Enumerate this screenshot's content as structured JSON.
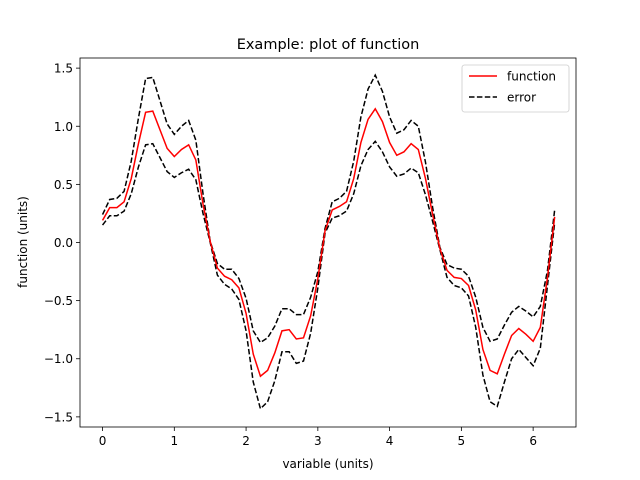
{
  "chart_data": {
    "type": "line",
    "title": "Example: plot of function",
    "xlabel": "variable (units)",
    "ylabel": "function (units)",
    "xlim": [
      -0.3142,
      6.5973
    ],
    "ylim": [
      -1.5871,
      1.5871
    ],
    "xticks": [
      0,
      1,
      2,
      3,
      4,
      5,
      6
    ],
    "xtick_labels": [
      "0",
      "1",
      "2",
      "3",
      "4",
      "5",
      "6"
    ],
    "yticks": [
      -1.5,
      -1.0,
      -0.5,
      0.0,
      0.5,
      1.0,
      1.5
    ],
    "ytick_labels": [
      "−1.5",
      "−1.0",
      "−0.5",
      "0.0",
      "0.5",
      "1.0",
      "1.5"
    ],
    "grid": false,
    "legend_position": "top-right",
    "x": [
      0.0,
      0.1,
      0.2,
      0.3,
      0.4,
      0.5,
      0.6,
      0.7,
      0.8,
      0.9,
      1.0,
      1.1,
      1.2,
      1.3,
      1.4,
      1.5,
      1.6,
      1.7,
      1.8,
      1.9,
      2.0,
      2.1,
      2.2,
      2.3,
      2.4,
      2.5,
      2.6,
      2.7,
      2.8,
      2.9,
      3.0,
      3.1,
      3.2,
      3.3,
      3.4,
      3.5,
      3.6,
      3.7,
      3.8,
      3.9,
      4.0,
      4.1,
      4.2,
      4.3,
      4.4,
      4.5,
      4.6,
      4.7,
      4.8,
      4.9,
      5.0,
      5.1,
      5.2,
      5.3,
      5.4,
      5.5,
      5.6,
      5.7,
      5.8,
      5.9,
      6.0,
      6.1,
      6.2,
      6.3
    ],
    "series": [
      {
        "name": "function",
        "color": "#ff0000",
        "style": "solid",
        "values": [
          0.19,
          0.3,
          0.3,
          0.35,
          0.55,
          0.85,
          1.12,
          1.13,
          0.97,
          0.81,
          0.74,
          0.8,
          0.84,
          0.71,
          0.33,
          0.01,
          -0.22,
          -0.29,
          -0.32,
          -0.39,
          -0.61,
          -0.96,
          -1.15,
          -1.1,
          -0.95,
          -0.76,
          -0.75,
          -0.83,
          -0.82,
          -0.63,
          -0.31,
          0.1,
          0.28,
          0.31,
          0.35,
          0.55,
          0.86,
          1.06,
          1.15,
          1.04,
          0.86,
          0.75,
          0.78,
          0.85,
          0.8,
          0.55,
          0.24,
          -0.05,
          -0.24,
          -0.3,
          -0.31,
          -0.37,
          -0.58,
          -0.92,
          -1.1,
          -1.13,
          -0.96,
          -0.8,
          -0.74,
          -0.79,
          -0.85,
          -0.73,
          -0.3,
          0.22
        ]
      },
      {
        "name": "error",
        "color": "#000000",
        "style": "dashed",
        "upper": [
          0.24,
          0.37,
          0.38,
          0.44,
          0.7,
          1.07,
          1.41,
          1.42,
          1.22,
          1.02,
          0.93,
          1.0,
          1.05,
          0.88,
          0.42,
          0.01,
          -0.18,
          -0.23,
          -0.23,
          -0.31,
          -0.48,
          -0.76,
          -0.86,
          -0.82,
          -0.72,
          -0.57,
          -0.57,
          -0.62,
          -0.62,
          -0.47,
          -0.25,
          0.12,
          0.35,
          0.38,
          0.44,
          0.7,
          1.08,
          1.32,
          1.44,
          1.3,
          1.08,
          0.94,
          0.97,
          1.05,
          1.0,
          0.69,
          0.3,
          -0.04,
          -0.19,
          -0.22,
          -0.23,
          -0.29,
          -0.47,
          -0.73,
          -0.85,
          -0.83,
          -0.71,
          -0.6,
          -0.55,
          -0.59,
          -0.64,
          -0.55,
          -0.24,
          0.28
        ],
        "lower": [
          0.15,
          0.23,
          0.23,
          0.27,
          0.42,
          0.65,
          0.84,
          0.85,
          0.73,
          0.61,
          0.56,
          0.6,
          0.63,
          0.54,
          0.25,
          0.0,
          -0.28,
          -0.36,
          -0.4,
          -0.49,
          -0.76,
          -1.2,
          -1.43,
          -1.37,
          -1.19,
          -0.94,
          -0.94,
          -1.04,
          -1.02,
          -0.78,
          -0.39,
          0.08,
          0.21,
          0.23,
          0.27,
          0.42,
          0.66,
          0.8,
          0.87,
          0.78,
          0.65,
          0.57,
          0.59,
          0.64,
          0.6,
          0.41,
          0.18,
          -0.06,
          -0.3,
          -0.37,
          -0.39,
          -0.46,
          -0.73,
          -1.14,
          -1.37,
          -1.41,
          -1.2,
          -1.0,
          -0.92,
          -0.99,
          -1.06,
          -0.91,
          -0.37,
          0.17
        ]
      }
    ]
  }
}
